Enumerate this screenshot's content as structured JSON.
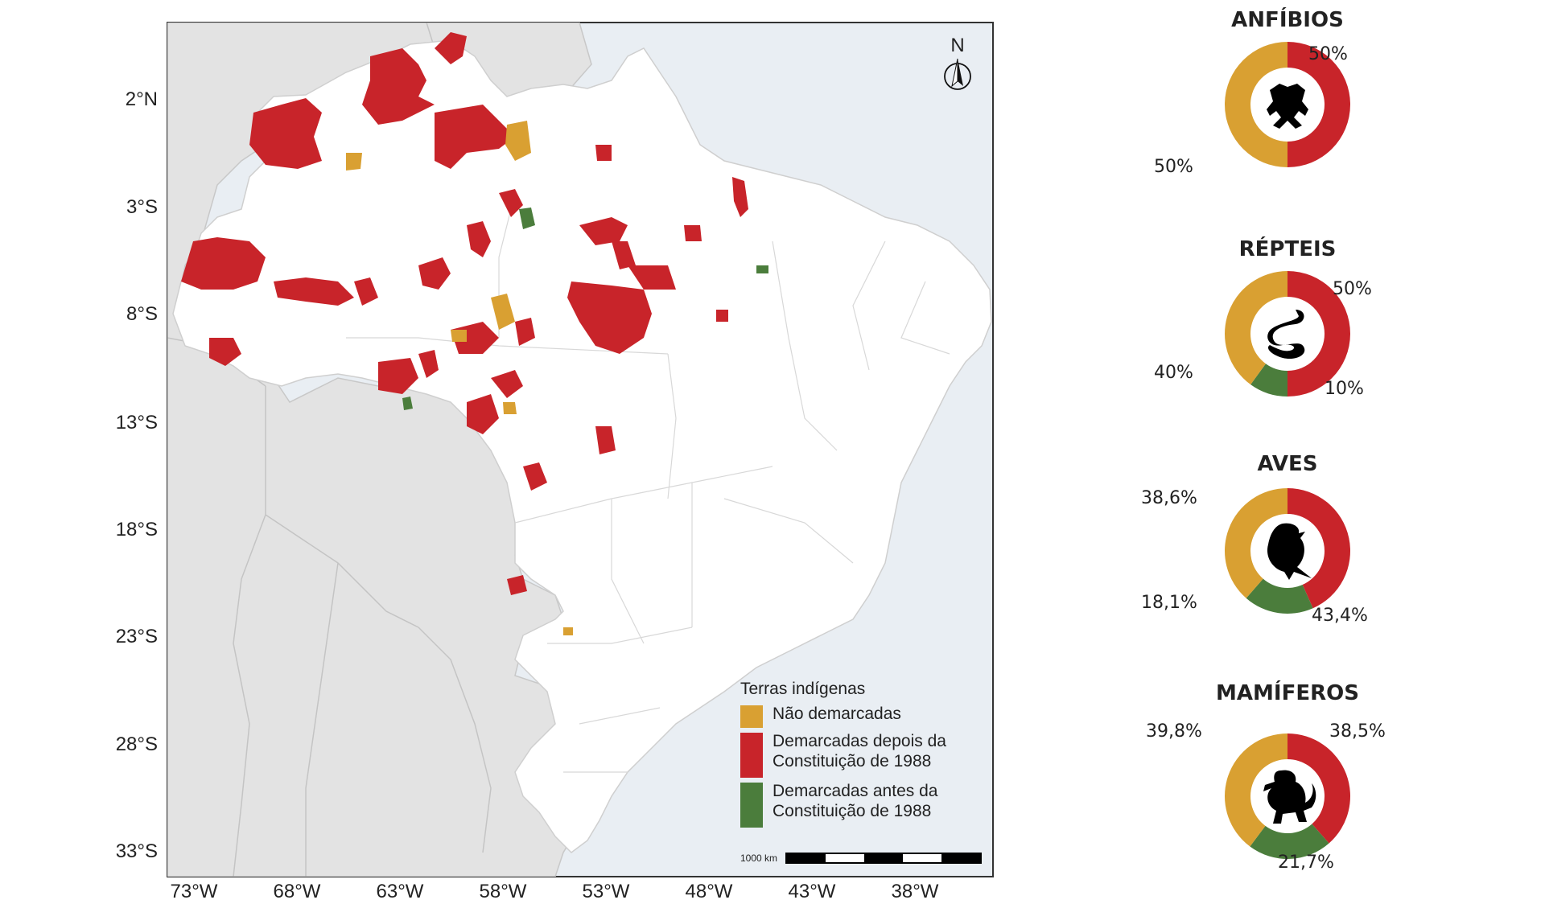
{
  "colors": {
    "red": "#c8242a",
    "orange": "#d9a032",
    "green": "#4b7d3c",
    "land_neighbors": "#e3e3e3",
    "ocean": "#e9eef3",
    "brazil": "#ffffff"
  },
  "map": {
    "latitude_labels": [
      "2°N",
      "3°S",
      "8°S",
      "13°S",
      "18°S",
      "23°S",
      "28°S",
      "33°S"
    ],
    "longitude_labels": [
      "73°W",
      "68°W",
      "63°W",
      "58°W",
      "53°W",
      "48°W",
      "43°W",
      "38°W"
    ],
    "north_arrow_label": "N",
    "scale_label": "1000 km",
    "legend": {
      "title": "Terras indígenas",
      "items": [
        {
          "label": "Não demarcadas",
          "color": "#d9a032"
        },
        {
          "label": "Demarcadas depois da Constituição de 1988",
          "color": "#c8242a"
        },
        {
          "label": "Demarcadas antes da Constituição de 1988",
          "color": "#4b7d3c"
        }
      ]
    }
  },
  "chart_data": [
    {
      "type": "pie",
      "title": "ANFÍBIOS",
      "icon": "frog-icon",
      "slices": [
        {
          "category": "Demarcadas depois da Constituição de 1988",
          "value": 50,
          "label": "50%"
        },
        {
          "category": "Não demarcadas",
          "value": 50,
          "label": "50%"
        }
      ]
    },
    {
      "type": "pie",
      "title": "RÉPTEIS",
      "icon": "snake-icon",
      "slices": [
        {
          "category": "Demarcadas depois da Constituição de 1988",
          "value": 50,
          "label": "50%"
        },
        {
          "category": "Demarcadas antes da Constituição de 1988",
          "value": 10,
          "label": "10%"
        },
        {
          "category": "Não demarcadas",
          "value": 40,
          "label": "40%"
        }
      ]
    },
    {
      "type": "pie",
      "title": "AVES",
      "icon": "bird-icon",
      "slices": [
        {
          "category": "Demarcadas depois da Constituição de 1988",
          "value": 43.4,
          "label": "43,4%"
        },
        {
          "category": "Demarcadas antes da Constituição de 1988",
          "value": 18.1,
          "label": "18,1%"
        },
        {
          "category": "Não demarcadas",
          "value": 38.6,
          "label": "38,6%"
        }
      ]
    },
    {
      "type": "pie",
      "title": "MAMÍFEROS",
      "icon": "monkey-icon",
      "slices": [
        {
          "category": "Demarcadas depois da Constituição de 1988",
          "value": 38.5,
          "label": "38,5%"
        },
        {
          "category": "Demarcadas antes da Constituição de 1988",
          "value": 21.7,
          "label": "21,7%"
        },
        {
          "category": "Não demarcadas",
          "value": 39.8,
          "label": "39,8%"
        }
      ]
    }
  ]
}
